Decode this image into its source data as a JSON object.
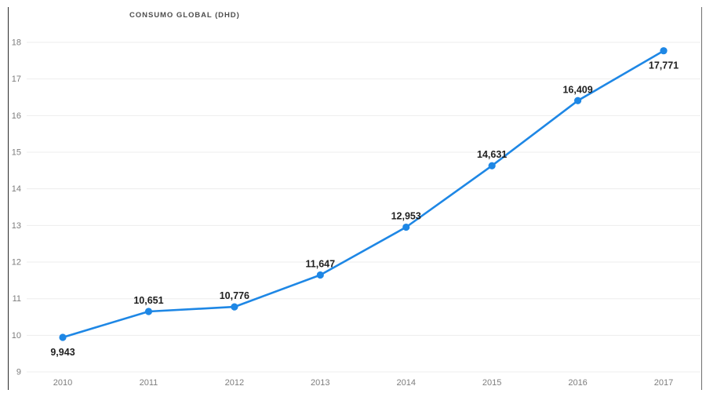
{
  "title": {
    "text": "CONSUMO GLOBAL (DHD)"
  },
  "chart_data": {
    "type": "line",
    "title": "CONSUMO GLOBAL (DHD)",
    "categories": [
      "2010",
      "2011",
      "2012",
      "2013",
      "2014",
      "2015",
      "2016",
      "2017"
    ],
    "series": [
      {
        "name": "CONSUMO GLOBAL (DHD)",
        "values": [
          9.943,
          10.651,
          10.776,
          11.647,
          12.953,
          14.631,
          16.409,
          17.771
        ]
      }
    ],
    "point_labels": [
      "9,943",
      "10,651",
      "10,776",
      "11,647",
      "12,953",
      "14,631",
      "16,409",
      "17,771"
    ],
    "label_positions": [
      "below",
      "above",
      "above",
      "above",
      "above",
      "above",
      "above",
      "below"
    ],
    "xlabel": "",
    "ylabel": "",
    "ylim": [
      9,
      18
    ],
    "yticks": [
      9,
      10,
      11,
      12,
      13,
      14,
      15,
      16,
      17,
      18
    ],
    "grid": true,
    "legend": "none",
    "colors": {
      "line": "#1E87E5",
      "marker": "#1E87E5",
      "grid": "#ededed",
      "axis_text": "#7d7d7d",
      "data_label": "#1f1f1f",
      "title_text": "#4d4d4d",
      "left_edge": "#2b2b2b",
      "right_edge": "#6e6e6e",
      "background": "#ffffff"
    }
  }
}
